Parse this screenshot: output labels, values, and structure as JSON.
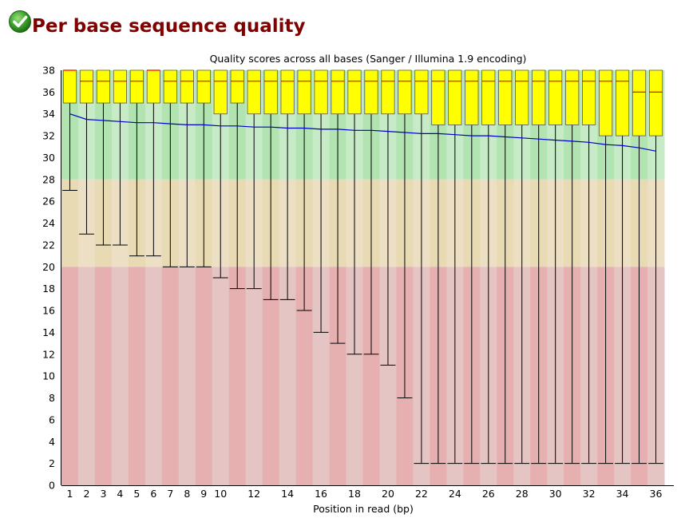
{
  "header": {
    "status_icon": "check-circle-icon",
    "title": "Per base sequence quality"
  },
  "chart_data": {
    "type": "boxplot",
    "title": "Quality scores across all bases (Sanger / Illumina 1.9 encoding)",
    "xlabel": "Position in read (bp)",
    "ylabel": "",
    "ylim": [
      0,
      38
    ],
    "yticks": [
      0,
      2,
      4,
      6,
      8,
      10,
      12,
      14,
      16,
      18,
      20,
      22,
      24,
      26,
      28,
      30,
      32,
      34,
      36,
      38
    ],
    "xtick_labels": [
      "1",
      "2",
      "3",
      "4",
      "5",
      "6",
      "7",
      "8",
      "9",
      "10",
      "12",
      "14",
      "16",
      "18",
      "20",
      "22",
      "24",
      "26",
      "28",
      "30",
      "32",
      "34",
      "36"
    ],
    "xtick_positions": [
      1,
      2,
      3,
      4,
      5,
      6,
      7,
      8,
      9,
      10,
      12,
      14,
      16,
      18,
      20,
      22,
      24,
      26,
      28,
      30,
      32,
      34,
      36
    ],
    "quality_zones": [
      {
        "name": "good",
        "from": 28,
        "to": 38,
        "colors": [
          "#b1e4b1",
          "#c7eac7"
        ]
      },
      {
        "name": "reasonable",
        "from": 20,
        "to": 28,
        "colors": [
          "#e8dab2",
          "#eddfc3"
        ]
      },
      {
        "name": "poor",
        "from": 0,
        "to": 20,
        "colors": [
          "#e6b0b0",
          "#e5c4c4"
        ]
      }
    ],
    "colors": {
      "box": "#ffff00",
      "box_border": "#555555",
      "median": "#ff0000",
      "mean": "#0000cc",
      "whisker": "#000000"
    },
    "positions": [
      1,
      2,
      3,
      4,
      5,
      6,
      7,
      8,
      9,
      10,
      11,
      12,
      13,
      14,
      15,
      16,
      17,
      18,
      19,
      20,
      21,
      22,
      23,
      24,
      25,
      26,
      27,
      28,
      29,
      30,
      31,
      32,
      33,
      34,
      35,
      36
    ],
    "whisker_low": [
      27,
      23,
      22,
      22,
      21,
      21,
      20,
      20,
      20,
      19,
      18,
      18,
      17,
      17,
      16,
      14,
      13,
      12,
      12,
      11,
      8,
      2,
      2,
      2,
      2,
      2,
      2,
      2,
      2,
      2,
      2,
      2,
      2,
      2,
      2,
      2
    ],
    "q1": [
      35,
      35,
      35,
      35,
      35,
      35,
      35,
      35,
      35,
      34,
      35,
      34,
      34,
      34,
      34,
      34,
      34,
      34,
      34,
      34,
      34,
      34,
      33,
      33,
      33,
      33,
      33,
      33,
      33,
      33,
      33,
      33,
      32,
      32,
      32,
      32
    ],
    "median": [
      38,
      37,
      37,
      37,
      37,
      38,
      37,
      37,
      37,
      37,
      37,
      37,
      37,
      37,
      37,
      37,
      37,
      37,
      37,
      37,
      37,
      37,
      37,
      37,
      37,
      37,
      37,
      37,
      37,
      37,
      37,
      37,
      37,
      37,
      36,
      36
    ],
    "q3": [
      38,
      38,
      38,
      38,
      38,
      38,
      38,
      38,
      38,
      38,
      38,
      38,
      38,
      38,
      38,
      38,
      38,
      38,
      38,
      38,
      38,
      38,
      38,
      38,
      38,
      38,
      38,
      38,
      38,
      38,
      38,
      38,
      38,
      38,
      38,
      38
    ],
    "whisker_high": [
      38,
      38,
      38,
      38,
      38,
      38,
      38,
      38,
      38,
      38,
      38,
      38,
      38,
      38,
      38,
      38,
      38,
      38,
      38,
      38,
      38,
      38,
      38,
      38,
      38,
      38,
      38,
      38,
      38,
      38,
      38,
      38,
      38,
      38,
      38,
      38
    ],
    "mean": [
      34.0,
      33.5,
      33.4,
      33.3,
      33.2,
      33.2,
      33.1,
      33.0,
      33.0,
      32.9,
      32.9,
      32.8,
      32.8,
      32.7,
      32.7,
      32.6,
      32.6,
      32.5,
      32.5,
      32.4,
      32.3,
      32.2,
      32.2,
      32.1,
      32.0,
      32.0,
      31.9,
      31.8,
      31.7,
      31.6,
      31.5,
      31.4,
      31.2,
      31.1,
      30.9,
      30.6
    ]
  }
}
